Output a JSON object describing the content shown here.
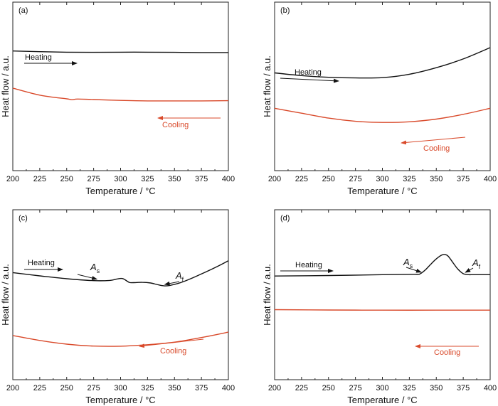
{
  "chart_data": [
    {
      "panel_label": "(a)",
      "type": "line",
      "xlabel": "Temperature / °C",
      "ylabel": "Heat flow / a.u.",
      "xlim": [
        200,
        400
      ],
      "ylim": [
        0,
        100
      ],
      "x_ticks": [
        200,
        225,
        250,
        275,
        300,
        325,
        350,
        375,
        400
      ],
      "y_ticks_labeled": false,
      "grid": false,
      "series": [
        {
          "name": "Heating",
          "color": "#111111",
          "x": [
            200,
            225,
            250,
            275,
            300,
            325,
            350,
            375,
            400
          ],
          "y": [
            71,
            70.6,
            70.3,
            70.2,
            70.3,
            70.3,
            70.2,
            70.1,
            70.1
          ]
        },
        {
          "name": "Cooling",
          "color": "#d94a2b",
          "x": [
            200,
            225,
            250,
            255,
            260,
            275,
            300,
            325,
            350,
            375,
            400
          ],
          "y": [
            49,
            44.8,
            42.6,
            42.1,
            42.5,
            42.2,
            41.7,
            41.4,
            41.4,
            41.4,
            41.5
          ]
        }
      ],
      "annotations": [
        {
          "text": "Heating",
          "arrow": "right"
        },
        {
          "text": "Cooling",
          "arrow": "left"
        }
      ]
    },
    {
      "panel_label": "(b)",
      "type": "line",
      "xlabel": "Temperature / °C",
      "ylabel": "Heat flow / a.u.",
      "xlim": [
        200,
        400
      ],
      "ylim": [
        0,
        100
      ],
      "x_ticks": [
        200,
        225,
        250,
        275,
        300,
        325,
        350,
        375,
        400
      ],
      "y_ticks_labeled": false,
      "grid": false,
      "series": [
        {
          "name": "Heating",
          "color": "#111111",
          "x": [
            200,
            225,
            250,
            275,
            300,
            325,
            350,
            375,
            400
          ],
          "y": [
            58,
            56.4,
            55.4,
            55.0,
            55.2,
            57.2,
            61.1,
            66.3,
            73
          ]
        },
        {
          "name": "Cooling",
          "color": "#d94a2b",
          "x": [
            200,
            225,
            250,
            275,
            300,
            325,
            350,
            375,
            400
          ],
          "y": [
            37,
            34.1,
            31.2,
            29.3,
            28.6,
            29.0,
            30.6,
            33.4,
            37
          ]
        }
      ],
      "annotations": [
        {
          "text": "Heating",
          "arrow": "right"
        },
        {
          "text": "Cooling",
          "arrow": "left"
        }
      ]
    },
    {
      "panel_label": "(c)",
      "type": "line",
      "xlabel": "Temperature / °C",
      "ylabel": "Heat flow / a.u.",
      "xlim": [
        200,
        400
      ],
      "ylim": [
        0,
        100
      ],
      "x_ticks": [
        200,
        225,
        250,
        275,
        300,
        325,
        350,
        375,
        400
      ],
      "y_ticks_labeled": false,
      "grid": false,
      "series": [
        {
          "name": "Heating",
          "color": "#111111",
          "x": [
            200,
            225,
            250,
            275,
            290,
            297,
            302,
            308,
            312,
            320,
            328,
            335,
            342,
            350,
            360,
            375,
            390,
            400
          ],
          "y": [
            63,
            61.1,
            59.4,
            58.3,
            58.4,
            59.3,
            59.5,
            57.3,
            57.1,
            57.3,
            56.9,
            55.8,
            55.2,
            56.1,
            58.1,
            62.2,
            66.7,
            70
          ]
        },
        {
          "name": "Cooling",
          "color": "#d94a2b",
          "x": [
            200,
            225,
            250,
            275,
            300,
            325,
            350,
            375,
            400
          ],
          "y": [
            26,
            23.1,
            20.9,
            19.8,
            19.7,
            20.6,
            22.1,
            24.8,
            28
          ]
        }
      ],
      "annotations": [
        {
          "text": "Heating",
          "arrow": "right"
        },
        {
          "text": "Cooling",
          "arrow": "left"
        },
        {
          "text": "As",
          "base": "A",
          "sub": "s",
          "arrow_to": [
            278,
            58.3
          ]
        },
        {
          "text": "Af",
          "base": "A",
          "sub": "f",
          "arrow_to": [
            341,
            55.2
          ]
        }
      ]
    },
    {
      "panel_label": "(d)",
      "type": "line",
      "xlabel": "Temperature / °C",
      "ylabel": "Heat flow / a.u.",
      "xlim": [
        200,
        400
      ],
      "ylim": [
        0,
        100
      ],
      "x_ticks": [
        200,
        225,
        250,
        275,
        300,
        325,
        350,
        375,
        400
      ],
      "y_ticks_labeled": false,
      "grid": false,
      "series": [
        {
          "name": "Heating",
          "color": "#111111",
          "x": [
            200,
            250,
            300,
            330,
            335,
            340,
            345,
            350,
            355,
            358,
            361,
            365,
            370,
            375,
            380,
            385,
            400
          ],
          "y": [
            61,
            61.3,
            61.8,
            62.0,
            62.3,
            64.7,
            68.0,
            71.1,
            73.3,
            73.7,
            72.7,
            69.3,
            65.1,
            62.4,
            61.8,
            61.8,
            61.8
          ]
        },
        {
          "name": "Cooling",
          "color": "#d94a2b",
          "x": [
            200,
            250,
            300,
            350,
            400
          ],
          "y": [
            41.2,
            41.0,
            40.9,
            40.9,
            40.9
          ]
        }
      ],
      "annotations": [
        {
          "text": "Heating",
          "arrow": "right"
        },
        {
          "text": "Cooling",
          "arrow": "left"
        },
        {
          "text": "As",
          "base": "A",
          "sub": "s",
          "arrow_to": [
            336,
            62.4
          ]
        },
        {
          "text": "Af",
          "base": "A",
          "sub": "f",
          "arrow_to": [
            377,
            62.3
          ]
        }
      ]
    }
  ]
}
